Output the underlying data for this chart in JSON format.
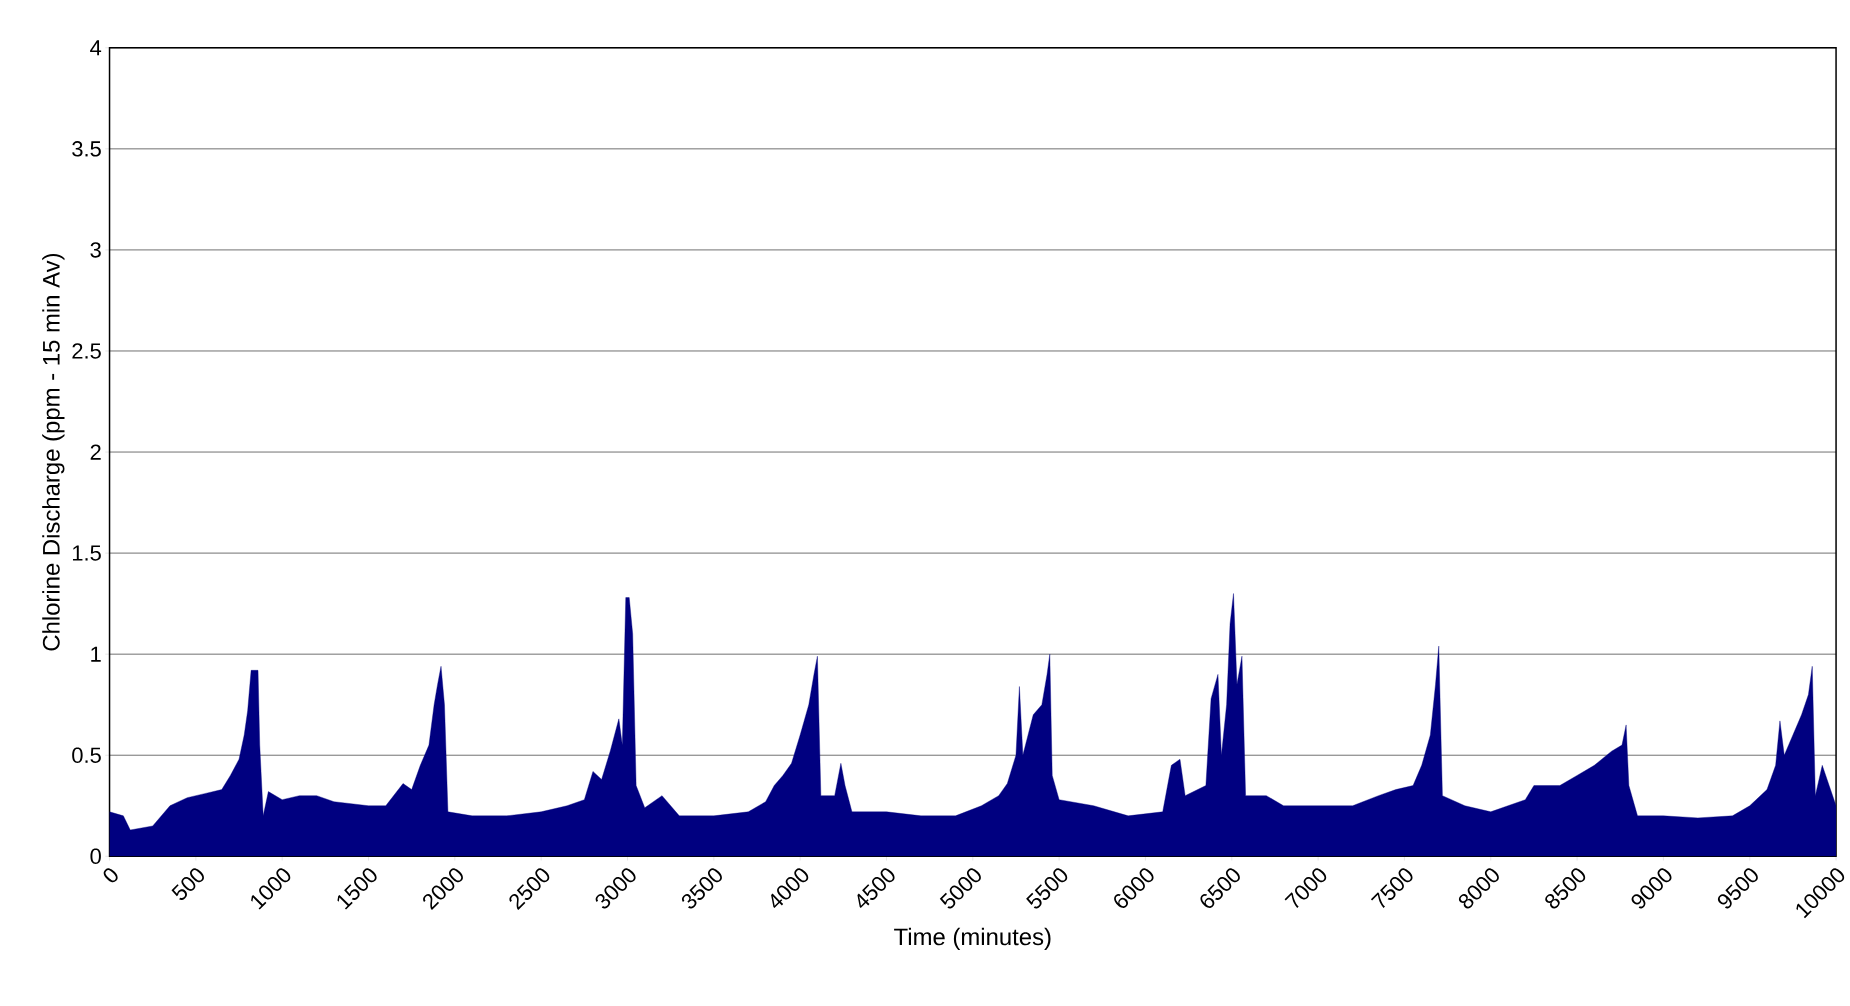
{
  "chart_data": {
    "type": "area",
    "xlabel": "Time (minutes)",
    "ylabel": "Chlorine Discharge (ppm - 15 min Av)",
    "x": [
      0,
      80,
      120,
      250,
      350,
      450,
      550,
      650,
      700,
      750,
      780,
      800,
      820,
      860,
      870,
      890,
      920,
      1000,
      1100,
      1200,
      1300,
      1500,
      1600,
      1700,
      1750,
      1800,
      1850,
      1880,
      1900,
      1920,
      1940,
      1960,
      2100,
      2300,
      2500,
      2650,
      2750,
      2800,
      2850,
      2900,
      2950,
      2970,
      2990,
      3010,
      3030,
      3050,
      3100,
      3200,
      3300,
      3500,
      3700,
      3800,
      3850,
      3900,
      3950,
      4000,
      4050,
      4080,
      4100,
      4120,
      4200,
      4236,
      4260,
      4300,
      4500,
      4700,
      4900,
      5050,
      5150,
      5200,
      5250,
      5270,
      5290,
      5320,
      5350,
      5400,
      5430,
      5446,
      5460,
      5500,
      5700,
      5900,
      6100,
      6150,
      6200,
      6230,
      6350,
      6380,
      6420,
      6440,
      6470,
      6490,
      6510,
      6530,
      6559,
      6580,
      6700,
      6800,
      7000,
      7200,
      7350,
      7450,
      7550,
      7600,
      7650,
      7680,
      7699,
      7720,
      7850,
      8000,
      8200,
      8250,
      8400,
      8500,
      8600,
      8700,
      8760,
      8784,
      8800,
      8850,
      9000,
      9200,
      9400,
      9500,
      9600,
      9650,
      9675,
      9700,
      9750,
      9800,
      9840,
      9862,
      9880,
      9920,
      9960,
      10000
    ],
    "series": [
      {
        "color": "#000080",
        "values": [
          0.22,
          0.2,
          0.13,
          0.15,
          0.25,
          0.29,
          0.31,
          0.33,
          0.4,
          0.48,
          0.6,
          0.72,
          0.92,
          0.92,
          0.55,
          0.2,
          0.32,
          0.28,
          0.3,
          0.3,
          0.27,
          0.25,
          0.25,
          0.36,
          0.33,
          0.45,
          0.55,
          0.75,
          0.85,
          0.94,
          0.75,
          0.22,
          0.2,
          0.2,
          0.22,
          0.25,
          0.28,
          0.42,
          0.38,
          0.52,
          0.68,
          0.55,
          1.28,
          1.28,
          1.1,
          0.35,
          0.24,
          0.3,
          0.2,
          0.2,
          0.22,
          0.27,
          0.35,
          0.4,
          0.46,
          0.6,
          0.75,
          0.9,
          0.99,
          0.3,
          0.3,
          0.46,
          0.35,
          0.22,
          0.22,
          0.2,
          0.2,
          0.25,
          0.3,
          0.36,
          0.5,
          0.84,
          0.5,
          0.6,
          0.7,
          0.75,
          0.9,
          1.0,
          0.4,
          0.28,
          0.25,
          0.2,
          0.22,
          0.45,
          0.48,
          0.3,
          0.35,
          0.78,
          0.9,
          0.5,
          0.75,
          1.15,
          1.3,
          0.85,
          0.99,
          0.3,
          0.3,
          0.25,
          0.25,
          0.25,
          0.3,
          0.33,
          0.35,
          0.45,
          0.6,
          0.85,
          1.04,
          0.3,
          0.25,
          0.22,
          0.28,
          0.35,
          0.35,
          0.4,
          0.45,
          0.52,
          0.55,
          0.65,
          0.35,
          0.2,
          0.2,
          0.19,
          0.2,
          0.25,
          0.33,
          0.45,
          0.67,
          0.5,
          0.6,
          0.7,
          0.8,
          0.94,
          0.3,
          0.45,
          0.35,
          0.25
        ]
      }
    ],
    "xlim": [
      0,
      10000
    ],
    "xticks": [
      0,
      500,
      1000,
      1500,
      2000,
      2500,
      3000,
      3500,
      4000,
      4500,
      5000,
      5500,
      6000,
      6500,
      7000,
      7500,
      8000,
      8500,
      9000,
      9500,
      10000
    ],
    "ylim": [
      0,
      4
    ],
    "yticks": [
      0,
      0.5,
      1,
      1.5,
      2,
      2.5,
      3,
      3.5,
      4
    ],
    "grid": "y"
  }
}
